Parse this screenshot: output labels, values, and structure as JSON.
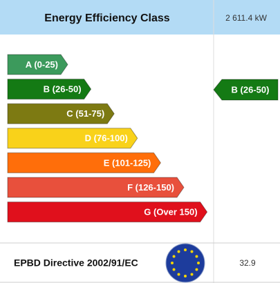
{
  "header": {
    "title": "Energy Efficiency Class",
    "value": "2 611.4 kW"
  },
  "bands": [
    {
      "label": "A (0-25)",
      "color": "#3c9a5c"
    },
    {
      "label": "B (26-50)",
      "color": "#147a14"
    },
    {
      "label": "C (51-75)",
      "color": "#7d7a12"
    },
    {
      "label": "D (76-100)",
      "color": "#f9d21a"
    },
    {
      "label": "E (101-125)",
      "color": "#ff6e0a"
    },
    {
      "label": "F (126-150)",
      "color": "#e8503c"
    },
    {
      "label": "G (Over 150)",
      "color": "#e0101c"
    }
  ],
  "indicator": {
    "label": "B (26-50)",
    "color": "#147a14"
  },
  "footer": {
    "title": "EPBD Directive 2002/91/EC",
    "value": "32.9"
  }
}
